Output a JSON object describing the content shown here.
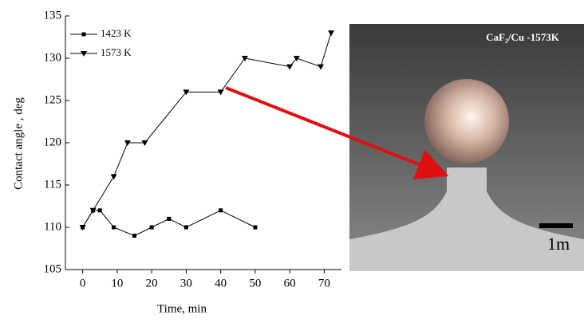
{
  "chart_data": {
    "type": "line",
    "xlabel": "Time, min",
    "ylabel": "Contact angle , deg",
    "xlim": [
      -5,
      75
    ],
    "ylim": [
      105,
      135
    ],
    "xticks": [
      0,
      10,
      20,
      30,
      40,
      50,
      60,
      70
    ],
    "yticks": [
      105,
      110,
      115,
      120,
      125,
      130,
      135
    ],
    "series": [
      {
        "name": "1423 K",
        "color": "#000000",
        "marker": "square",
        "x": [
          0,
          3,
          5,
          9,
          15,
          20,
          25,
          30,
          40,
          50
        ],
        "values": [
          110,
          112,
          112,
          110,
          109,
          110,
          111,
          110,
          112,
          110
        ]
      },
      {
        "name": "1573 K",
        "color": "#000000",
        "marker": "triangle-down",
        "x": [
          0,
          3,
          9,
          13,
          18,
          30,
          40,
          47,
          60,
          62,
          69,
          72
        ],
        "values": [
          110,
          112,
          116,
          120,
          120,
          126,
          126,
          130,
          129,
          130,
          129,
          133
        ]
      }
    ]
  },
  "photo": {
    "title": "CaF₂/Cu -1573K",
    "scale_label": "1m"
  }
}
